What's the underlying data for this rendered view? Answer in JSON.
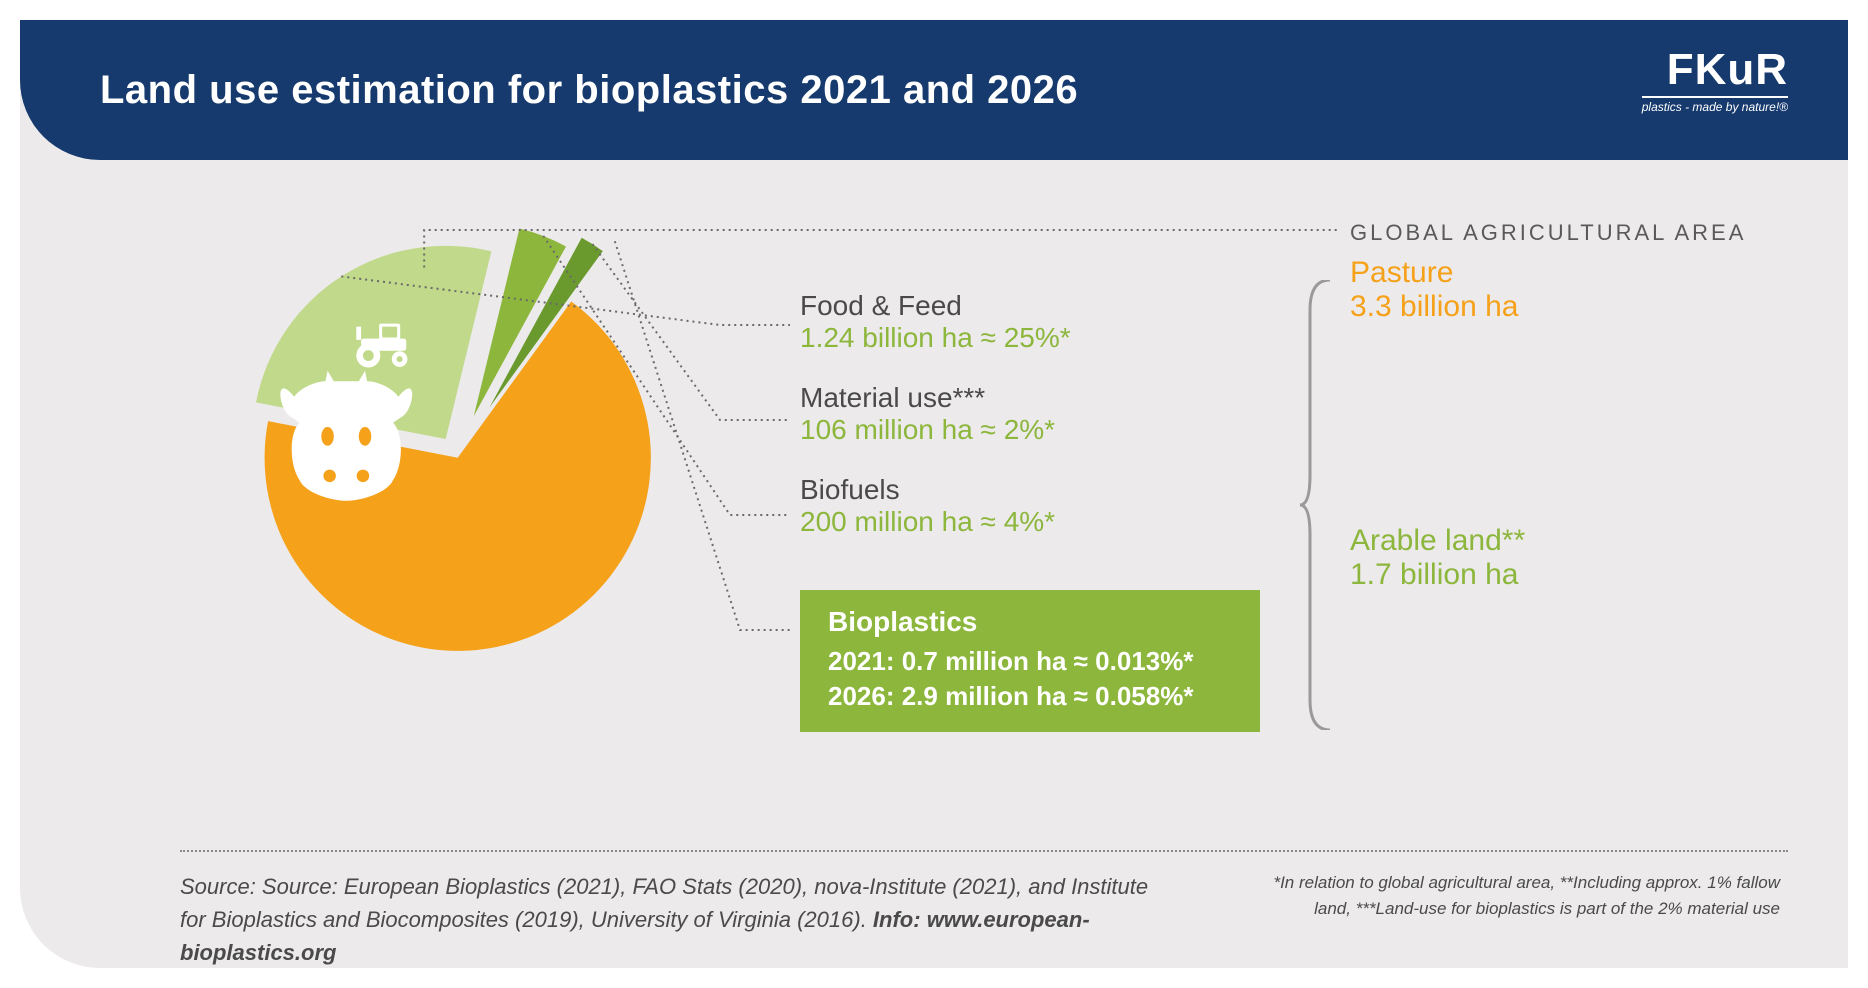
{
  "header": {
    "title": "Land use estimation for bioplastics 2021 and 2026",
    "logo_brand": "FKuR",
    "logo_tag": "plastics - made by nature!®"
  },
  "chart": {
    "type": "pie-exploded",
    "background_color": "#eceaeb",
    "slices": [
      {
        "name": "Pasture",
        "value": 3300,
        "unit": "million ha",
        "percent": 66,
        "color": "#f5a11a",
        "explode": 0
      },
      {
        "name": "Food & Feed",
        "value": 1240,
        "unit": "million ha",
        "percent": 25,
        "color": "#c0d98a",
        "explode": 30
      },
      {
        "name": "Biofuels",
        "value": 200,
        "unit": "million ha",
        "percent": 4,
        "color": "#8cb63c",
        "explode": 60
      },
      {
        "name": "Material use",
        "value": 106,
        "unit": "million ha",
        "percent": 2,
        "color": "#6a9a2d",
        "explode": 80
      },
      {
        "name": "Bioplastics",
        "value": 0.7,
        "unit": "million ha",
        "percent": 0.013,
        "color": "#e7efc8",
        "explode": 100
      }
    ],
    "icons": {
      "pasture": "cow",
      "arable": "tractor"
    },
    "leader_line_color": "#6a6a6a",
    "leader_line_style": "dotted"
  },
  "labels": {
    "food_feed": {
      "title": "Food & Feed",
      "value": "1.24 billion ha ≈ 25%*",
      "color": "#8cb63c"
    },
    "material": {
      "title": "Material use***",
      "value": "106 million ha ≈ 2%*",
      "color": "#8cb63c",
      "title_color": "#5a5a5a"
    },
    "biofuels": {
      "title": "Biofuels",
      "value": "200 million ha ≈ 4%*",
      "color": "#8cb63c",
      "title_color": "#5a5a5a"
    },
    "bioplastics": {
      "title": "Bioplastics",
      "line1": "2021: 0.7 million ha ≈ 0.013%*",
      "line2": "2026: 2.9 million ha ≈ 0.058%*",
      "box_bg": "#8cb63c",
      "box_fg": "#ffffff"
    }
  },
  "right": {
    "heading": "GLOBAL AGRICULTURAL AREA",
    "pasture": {
      "title": "Pasture",
      "value": "3.3 billion ha",
      "color": "#f5a11a"
    },
    "arable": {
      "title": "Arable land**",
      "value": "1.7 billion ha",
      "color": "#8cb63c"
    },
    "brace_color": "#9a9a9a"
  },
  "footer": {
    "source": "Source: Source: European Bioplastics (2021), FAO Stats (2020), nova-Institute (2021), and Institute for Bioplastics and Biocomposites (2019), University of Virginia (2016). ",
    "info_label": "Info: ",
    "info_url": "www.european-bioplastics.org",
    "notes": "*In relation to global agricultural area, **Including approx. 1% fallow land, ***Land-use for bioplastics is part of the 2% material use",
    "rule_color": "#888888"
  },
  "palette": {
    "header_bg": "#163a6e",
    "card_bg": "#eceaeb",
    "text_dark": "#4a4a4a"
  }
}
